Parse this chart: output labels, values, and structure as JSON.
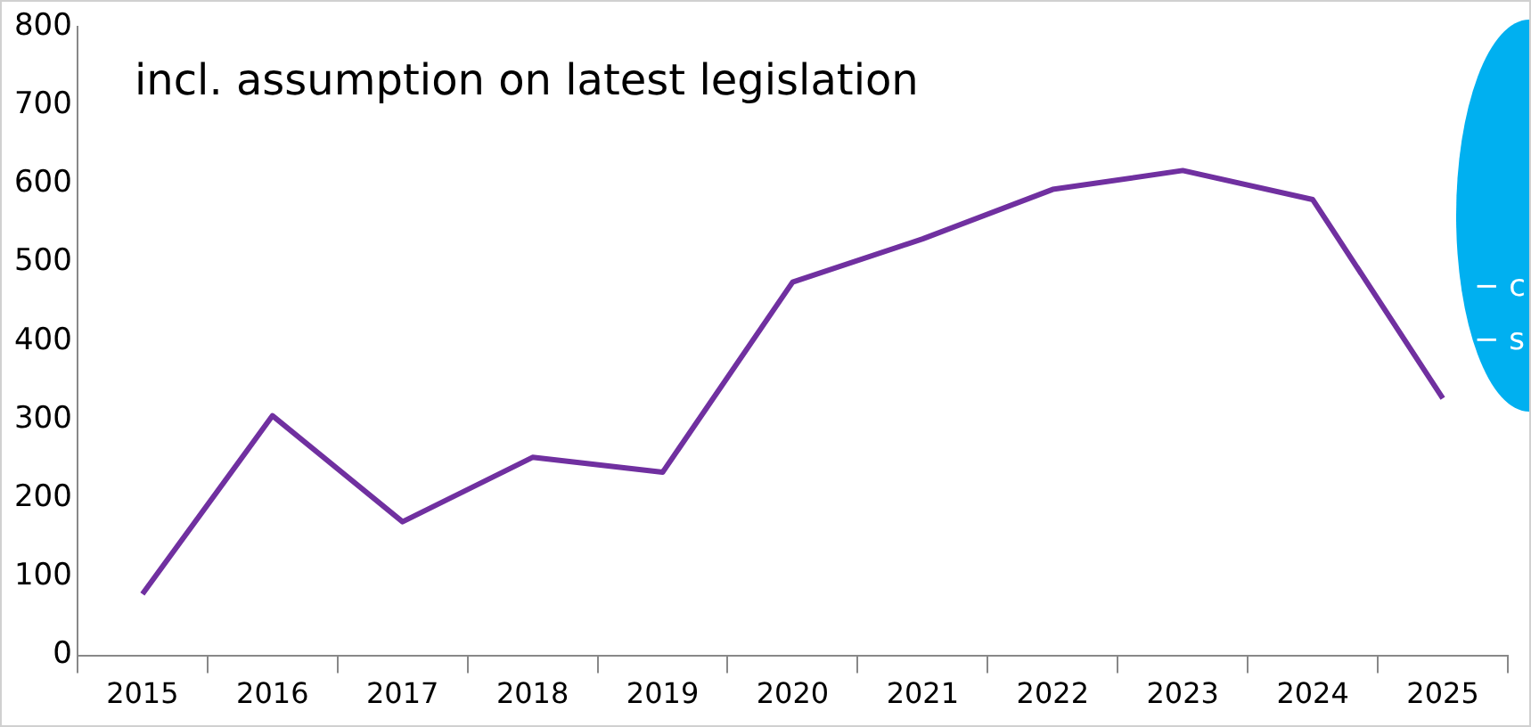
{
  "chart_data": {
    "type": "line",
    "categories": [
      "2015",
      "2016",
      "2017",
      "2018",
      "2019",
      "2020",
      "2021",
      "2022",
      "2023",
      "2024",
      "2025"
    ],
    "series": [
      {
        "color": "#7030a0",
        "values": [
          78,
          305,
          170,
          252,
          233,
          475,
          530,
          593,
          617,
          580,
          327
        ]
      }
    ],
    "ylim": [
      0,
      800
    ],
    "yticks": [
      0,
      100,
      200,
      300,
      400,
      500,
      600,
      700,
      800
    ],
    "grid": false,
    "legend": false,
    "marker": "none",
    "line_style": "solid",
    "annotations": [
      "incl. assumption on latest legislation",
      "− c",
      "− s"
    ]
  }
}
